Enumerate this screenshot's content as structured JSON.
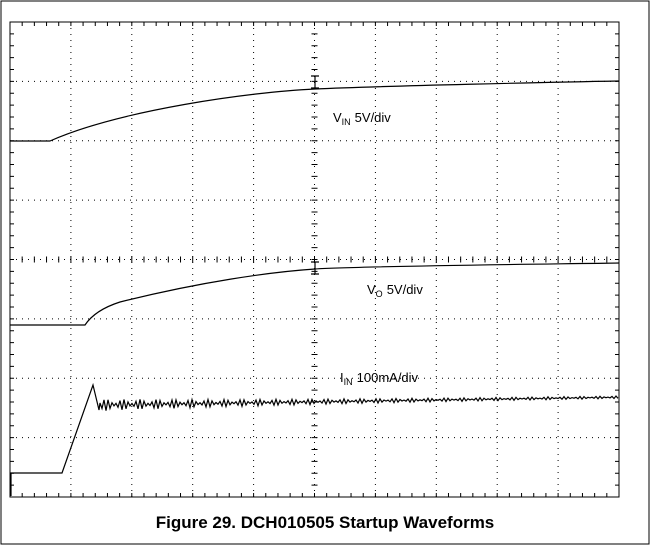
{
  "figure": {
    "labels": [
      {
        "symbol": "V",
        "subscript": "IN",
        "scale": "5V/div"
      },
      {
        "symbol": "V",
        "subscript": "O",
        "scale": "5V/div"
      },
      {
        "symbol": "I",
        "subscript": "IN",
        "scale": "100mA/div"
      }
    ],
    "caption": "Figure 29. DCH010505 Startup Waveforms"
  }
}
